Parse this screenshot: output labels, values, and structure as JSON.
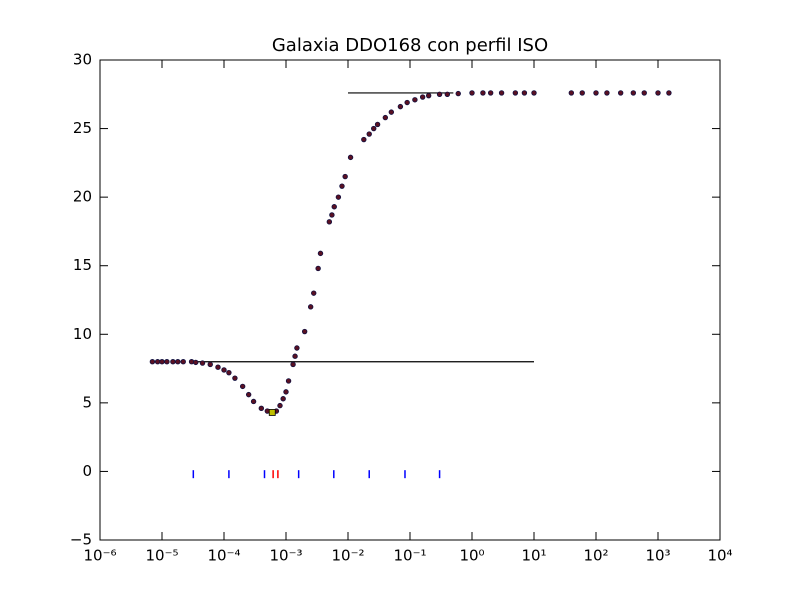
{
  "chart_data": {
    "type": "scatter",
    "title": "Galaxia DDO168 con perfil ISO",
    "xscale": "log",
    "xlim": [
      1e-06,
      10000
    ],
    "ylim": [
      -5,
      30
    ],
    "xticks": [
      {
        "value": 1e-06,
        "label": "10⁻⁶"
      },
      {
        "value": 1e-05,
        "label": "10⁻⁵"
      },
      {
        "value": 0.0001,
        "label": "10⁻⁴"
      },
      {
        "value": 0.001,
        "label": "10⁻³"
      },
      {
        "value": 0.01,
        "label": "10⁻²"
      },
      {
        "value": 0.1,
        "label": "10⁻¹"
      },
      {
        "value": 1,
        "label": "10⁰"
      },
      {
        "value": 10,
        "label": "10¹"
      },
      {
        "value": 100,
        "label": "10²"
      },
      {
        "value": 1000,
        "label": "10³"
      },
      {
        "value": 10000,
        "label": "10⁴"
      }
    ],
    "yticks": [
      {
        "value": -5,
        "label": "−5"
      },
      0,
      5,
      10,
      15,
      20,
      25,
      30
    ],
    "points": {
      "color": "#5a1022",
      "x": [
        7e-06,
        8.5e-06,
        1e-05,
        1.2e-05,
        1.5e-05,
        1.8e-05,
        2.2e-05,
        3e-05,
        3.5e-05,
        4.5e-05,
        6e-05,
        8e-05,
        0.0001,
        0.00012,
        0.00015,
        0.0002,
        0.00025,
        0.0003,
        0.0004,
        0.0005,
        0.0006,
        0.0007,
        0.0008,
        0.0009,
        0.001,
        0.0011,
        0.0013,
        0.0014,
        0.0015,
        0.002,
        0.0025,
        0.0028,
        0.0033,
        0.0036,
        0.005,
        0.0055,
        0.006,
        0.007,
        0.008,
        0.009,
        0.011,
        0.018,
        0.022,
        0.026,
        0.03,
        0.04,
        0.05,
        0.07,
        0.09,
        0.12,
        0.16,
        0.2,
        0.3,
        0.4,
        0.6,
        1,
        1.5,
        2,
        3,
        5,
        7,
        10,
        40,
        60,
        100,
        150,
        250,
        400,
        600,
        1000,
        1500
      ],
      "y": [
        8,
        8,
        8,
        8,
        8,
        8,
        8,
        8,
        7.95,
        7.9,
        7.8,
        7.6,
        7.4,
        7.2,
        6.8,
        6.2,
        5.6,
        5.1,
        4.6,
        4.4,
        4.3,
        4.4,
        4.8,
        5.3,
        5.8,
        6.6,
        7.8,
        8.4,
        9,
        10.2,
        12,
        13,
        14.8,
        15.9,
        18.2,
        18.7,
        19.3,
        20,
        20.8,
        21.5,
        22.9,
        24.2,
        24.6,
        25,
        25.3,
        25.8,
        26.2,
        26.6,
        26.9,
        27.1,
        27.3,
        27.4,
        27.5,
        27.5,
        27.55,
        27.6,
        27.6,
        27.6,
        27.6,
        27.6,
        27.6,
        27.6,
        27.6,
        27.6,
        27.6,
        27.6,
        27.6,
        27.6,
        27.6,
        27.6,
        27.6
      ]
    },
    "lines": [
      {
        "color": "#000000",
        "x": [
          3.2e-05,
          10
        ],
        "y": [
          8,
          8
        ]
      },
      {
        "color": "#000000",
        "x": [
          0.01,
          0.5
        ],
        "y": [
          27.6,
          27.6
        ]
      }
    ],
    "rug": [
      {
        "color": "#0000ff",
        "y": -0.2,
        "x": [
          3.2e-05,
          0.00012,
          0.00045,
          0.0016,
          0.0059,
          0.022,
          0.083,
          0.3
        ]
      },
      {
        "color": "#ff0000",
        "y": -0.2,
        "x": [
          0.00062,
          0.00074
        ]
      }
    ],
    "marker": {
      "color": "#bfbf00",
      "x": 0.0006,
      "y": 4.3
    }
  }
}
